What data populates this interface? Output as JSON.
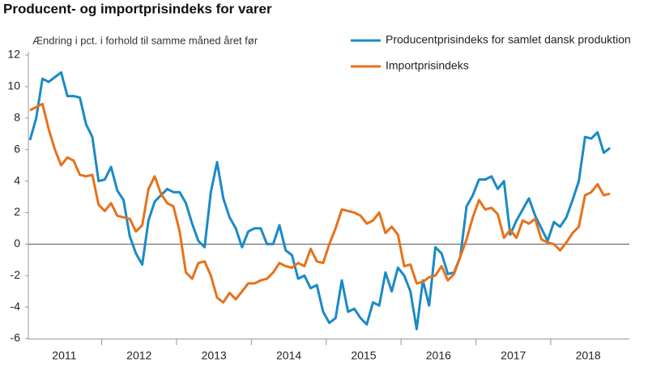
{
  "chart_data": {
    "type": "line",
    "title": "Producent- og importprisindeks for varer",
    "y_label": "Ændring i pct. i forhold til samme måned året før",
    "categories": [
      null,
      null,
      null,
      null,
      null,
      null,
      "2011",
      null,
      null,
      null,
      null,
      null,
      null,
      null,
      null,
      null,
      null,
      null,
      "2012",
      null,
      null,
      null,
      null,
      null,
      null,
      null,
      null,
      null,
      null,
      null,
      "2013",
      null,
      null,
      null,
      null,
      null,
      null,
      null,
      null,
      null,
      null,
      null,
      "2014",
      null,
      null,
      null,
      null,
      null,
      null,
      null,
      null,
      null,
      null,
      null,
      "2015",
      null,
      null,
      null,
      null,
      null,
      null,
      null,
      null,
      null,
      null,
      null,
      "2016",
      null,
      null,
      null,
      null,
      null,
      null,
      null,
      null,
      null,
      null,
      null,
      "2017",
      null,
      null,
      null,
      null,
      null,
      null,
      null,
      null,
      null,
      null,
      null,
      "2018",
      null,
      null,
      null
    ],
    "series": [
      {
        "name": "Producentprisindeks for samlet dansk produktion",
        "color": "#1a8ac6",
        "values": [
          6.6,
          8.0,
          10.5,
          10.3,
          10.6,
          10.9,
          9.4,
          9.4,
          9.3,
          7.6,
          6.8,
          4.0,
          4.1,
          4.9,
          3.4,
          2.8,
          0.5,
          -0.6,
          -1.3,
          1.5,
          2.7,
          3.1,
          3.5,
          3.3,
          3.3,
          2.6,
          1.3,
          0.2,
          -0.2,
          3.3,
          5.2,
          2.9,
          1.7,
          1.0,
          -0.2,
          0.8,
          1.0,
          1.0,
          0.0,
          0.0,
          1.2,
          -0.4,
          -0.7,
          -2.2,
          -2.0,
          -2.8,
          -2.6,
          -4.3,
          -5.0,
          -4.7,
          -2.3,
          -4.3,
          -4.1,
          -4.7,
          -5.1,
          -3.7,
          -3.9,
          -1.8,
          -3.0,
          -1.5,
          -2.0,
          -3.0,
          -5.4,
          -2.3,
          -3.9,
          -0.2,
          -0.6,
          -1.9,
          -1.8,
          -0.8,
          2.4,
          3.1,
          4.1,
          4.1,
          4.3,
          3.5,
          4.0,
          0.6,
          1.5,
          2.2,
          2.9,
          1.8,
          1.0,
          0.2,
          1.4,
          1.1,
          1.7,
          2.8,
          4.0,
          6.8,
          6.7,
          7.1,
          5.8,
          6.1
        ]
      },
      {
        "name": "Importprisindeks",
        "color": "#e8711a",
        "values": [
          8.5,
          8.7,
          8.9,
          7.3,
          6.0,
          5.0,
          5.5,
          5.3,
          4.4,
          4.3,
          4.4,
          2.5,
          2.1,
          2.6,
          1.8,
          1.7,
          1.6,
          0.8,
          1.2,
          3.5,
          4.3,
          3.2,
          2.6,
          2.4,
          0.8,
          -1.8,
          -2.2,
          -1.2,
          -1.1,
          -2.0,
          -3.4,
          -3.7,
          -3.1,
          -3.5,
          -3.0,
          -2.5,
          -2.5,
          -2.3,
          -2.2,
          -1.8,
          -1.2,
          -1.4,
          -1.5,
          -1.2,
          -1.4,
          -0.3,
          -1.1,
          -1.2,
          0.0,
          1.0,
          2.2,
          2.1,
          2.0,
          1.8,
          1.3,
          1.5,
          2.0,
          0.7,
          1.1,
          0.6,
          -1.4,
          -1.3,
          -2.5,
          -2.4,
          -2.1,
          -2.0,
          -1.4,
          -2.3,
          -1.9,
          -0.8,
          0.3,
          1.7,
          2.8,
          2.2,
          2.3,
          1.9,
          0.4,
          0.9,
          0.4,
          1.5,
          1.3,
          1.6,
          0.3,
          0.1,
          0.0,
          -0.4,
          0.1,
          0.7,
          1.1,
          3.1,
          3.3,
          3.8,
          3.1,
          3.2
        ]
      }
    ],
    "ylim": [
      -6,
      12
    ],
    "yticks": [
      -6,
      -4,
      -2,
      0,
      2,
      4,
      6,
      8,
      10,
      12
    ]
  }
}
